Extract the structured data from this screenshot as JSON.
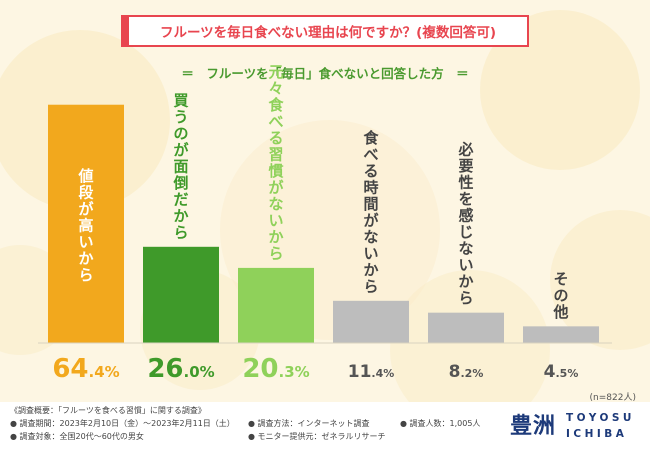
{
  "title": "フルーツを毎日食べない理由は何ですか？(複数回答可)",
  "subtitle": "＝　フルーツを「毎日」食べないと回答した方　＝",
  "chart_data": {
    "type": "bar",
    "categories": [
      "値段が高いから",
      "買うのが面倒だから",
      "元々食べる習慣がないから",
      "食べる時間がないから",
      "必要性を感じないから",
      "その他"
    ],
    "values": [
      64.4,
      26.0,
      20.3,
      11.4,
      8.2,
      4.5
    ],
    "value_labels": [
      {
        "int": "64",
        "dec": ".4%"
      },
      {
        "int": "26",
        "dec": ".0%"
      },
      {
        "int": "20",
        "dec": ".3%"
      },
      {
        "int": "11",
        "dec": ".4%"
      },
      {
        "int": "8",
        "dec": ".2%"
      },
      {
        "int": "4",
        "dec": ".5%"
      }
    ],
    "colors": [
      "#f2a81d",
      "#3f9a2a",
      "#8fd15a",
      "#bdbdbd",
      "#bdbdbd",
      "#bdbdbd"
    ],
    "label_colors": [
      "#ffffff",
      "#3f9a2a",
      "#8fd15a",
      "#444444",
      "#444444",
      "#444444"
    ],
    "value_colors": [
      "#f2a81d",
      "#3f9a2a",
      "#8fd15a",
      "#555555",
      "#555555",
      "#555555"
    ],
    "ylim": [
      0,
      70
    ],
    "note": "(n=822人)"
  },
  "footer": {
    "overview": "《調査概要：「フルーツを食べる習慣」に関する調査》",
    "period": "● 調査期間：2023年2月10日（金）～2023年2月11日（土）",
    "method": "● 調査方法：インターネット調査",
    "count": "● 調査人数：1,005人",
    "target": "● 調査対象：全国20代～60代の男女",
    "provider": "● モニター提供元：ゼネラルリサーチ"
  },
  "logo": {
    "kanji": "豊洲",
    "line1": "TOYOSU",
    "line2": "ICHIBA"
  }
}
